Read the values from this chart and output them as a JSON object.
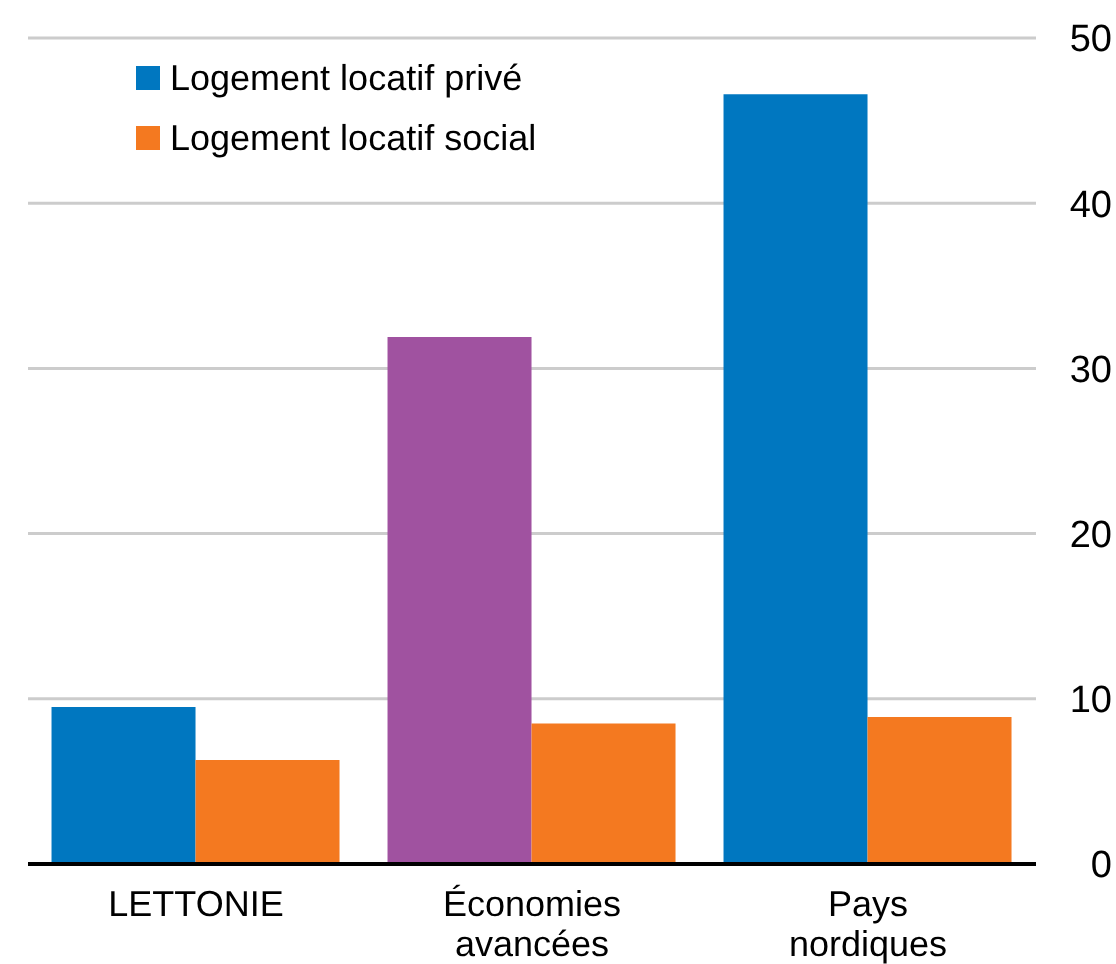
{
  "chart_data": {
    "type": "bar",
    "categories": [
      "LETTONIE",
      "Économies avancées",
      "Pays nordiques"
    ],
    "series": [
      {
        "name": "Logement locatif privé",
        "color": "#0077c0",
        "colors": [
          "#0077c0",
          "#a052a0",
          "#0077c0"
        ],
        "values": [
          9.5,
          31.9,
          46.6
        ]
      },
      {
        "name": "Logement locatif social",
        "color": "#f47920",
        "values": [
          6.3,
          8.5,
          8.9
        ]
      }
    ],
    "ylim": [
      0,
      50
    ],
    "yticks": [
      0,
      10,
      20,
      30,
      40,
      50
    ],
    "grid": "y",
    "legend": "top left"
  }
}
